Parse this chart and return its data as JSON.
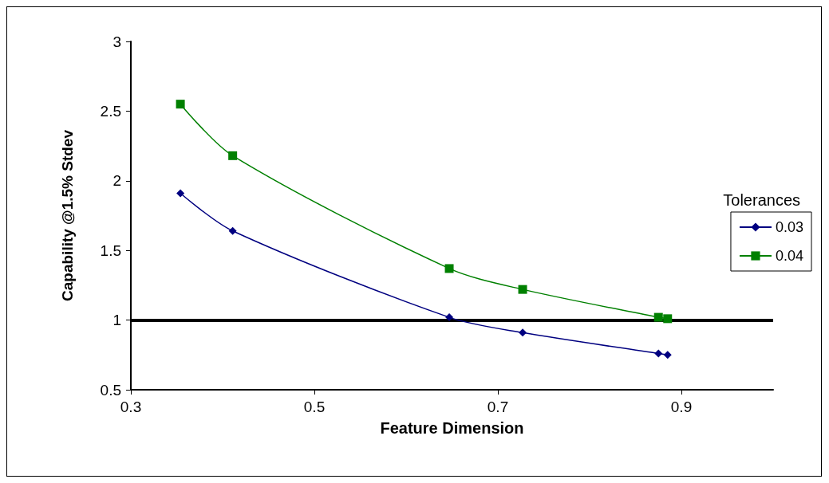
{
  "chart_data": {
    "type": "line",
    "xlabel": "Feature Dimension",
    "ylabel": "Capability @1.5% Stdev",
    "legend_title": "Tolerances",
    "legend": "right",
    "x": [
      0.354,
      0.411,
      0.647,
      0.727,
      0.875,
      0.885
    ],
    "series": [
      {
        "name": "0.03",
        "color": "#000080",
        "marker": "diamond",
        "values": [
          1.91,
          1.64,
          1.02,
          0.91,
          0.76,
          0.75
        ]
      },
      {
        "name": "0.04",
        "color": "#008000",
        "marker": "square",
        "values": [
          2.55,
          2.18,
          1.37,
          1.22,
          1.02,
          1.01
        ]
      }
    ],
    "xlim": [
      0.3,
      1.0
    ],
    "xticks": [
      0.3,
      0.5,
      0.7,
      0.9
    ],
    "ylim": [
      0.5,
      3
    ],
    "yticks": [
      0.5,
      1,
      1.5,
      2,
      2.5,
      3
    ],
    "grid": false,
    "ref_lines": [
      {
        "axis": "y",
        "value": 1,
        "color": "#000000"
      }
    ]
  }
}
